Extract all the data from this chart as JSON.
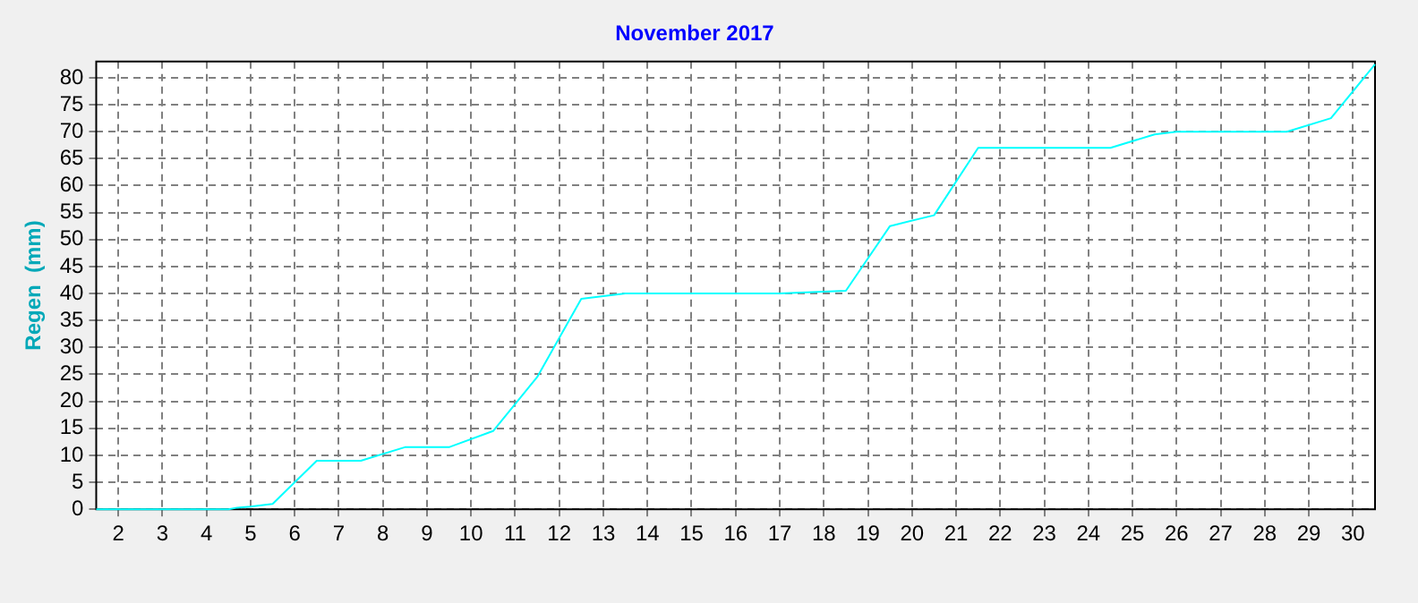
{
  "chart_data": {
    "type": "line",
    "title": "November 2017",
    "ylabel": "Regen  (mm)",
    "x": [
      1.5,
      4.5,
      4.7,
      5,
      5.5,
      6.5,
      7.5,
      8.5,
      9.5,
      10.5,
      11.5,
      12.5,
      13.5,
      17,
      18.5,
      19.5,
      20.5,
      21.5,
      24.5,
      25.5,
      26,
      28.5,
      29.5,
      30.5
    ],
    "series": [
      {
        "color": "#00ffff",
        "values": [
          0,
          0,
          0.3,
          0.5,
          1,
          9,
          9,
          11.5,
          11.5,
          14.5,
          24.5,
          39,
          40,
          40,
          40.5,
          52.5,
          54.5,
          67,
          67,
          69.5,
          70,
          70,
          72.5,
          82.5
        ]
      }
    ],
    "xlim": [
      1.5,
      30.5
    ],
    "xticks": [
      2,
      3,
      4,
      5,
      6,
      7,
      8,
      9,
      10,
      11,
      12,
      13,
      14,
      15,
      16,
      17,
      18,
      19,
      20,
      21,
      22,
      23,
      24,
      25,
      26,
      27,
      28,
      29,
      30
    ],
    "ylim": [
      0,
      83
    ],
    "yticks": [
      0,
      5,
      10,
      15,
      20,
      25,
      30,
      35,
      40,
      45,
      50,
      55,
      60,
      65,
      70,
      75,
      80
    ],
    "grid": true,
    "legend": false,
    "marker": "none",
    "line_style": "solid"
  }
}
